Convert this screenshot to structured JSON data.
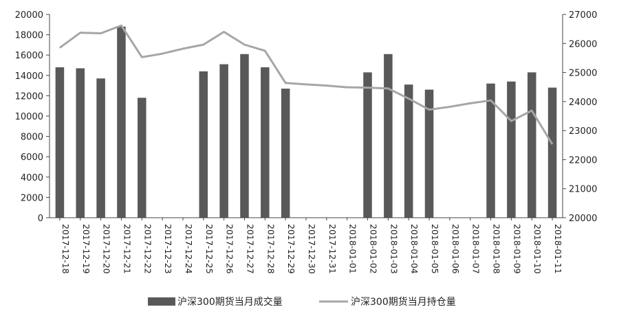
{
  "chart_data": {
    "type": "bar",
    "categories": [
      "2017-12-18",
      "2017-12-19",
      "2017-12-20",
      "2017-12-21",
      "2017-12-22",
      "2017-12-23",
      "2017-12-24",
      "2017-12-25",
      "2017-12-26",
      "2017-12-27",
      "2017-12-28",
      "2017-12-29",
      "2017-12-30",
      "2017-12-31",
      "2018-01-01",
      "2018-01-02",
      "2018-01-03",
      "2018-01-04",
      "2018-01-05",
      "2018-01-06",
      "2018-01-07",
      "2018-01-08",
      "2018-01-09",
      "2018-01-10",
      "2018-01-11"
    ],
    "series": [
      {
        "name": "沪深300期货当月成交量",
        "type": "bar",
        "axis": "left",
        "color": "#595959",
        "values": [
          14800,
          14700,
          13700,
          18800,
          11800,
          null,
          null,
          14400,
          15100,
          16100,
          14800,
          12700,
          null,
          null,
          null,
          14300,
          16100,
          13100,
          12600,
          null,
          null,
          13200,
          13400,
          14300,
          12800
        ]
      },
      {
        "name": "沪深300期货当月持仓量",
        "type": "line",
        "axis": "right",
        "color": "#a6a6a6",
        "values": [
          25850,
          26370,
          26350,
          26620,
          25530,
          25650,
          25820,
          25960,
          26400,
          25960,
          25750,
          24640,
          24590,
          24550,
          24490,
          24480,
          24450,
          24100,
          23720,
          23820,
          23940,
          24040,
          23330,
          23690,
          22530
        ]
      }
    ],
    "y_left": {
      "min": 0,
      "max": 20000,
      "ticks": [
        0,
        2000,
        4000,
        6000,
        8000,
        10000,
        12000,
        14000,
        16000,
        18000,
        20000
      ]
    },
    "y_right": {
      "min": 20000,
      "max": 27000,
      "ticks": [
        20000,
        21000,
        22000,
        23000,
        24000,
        25000,
        26000,
        27000
      ]
    },
    "legend_position": "bottom",
    "grid": false
  }
}
